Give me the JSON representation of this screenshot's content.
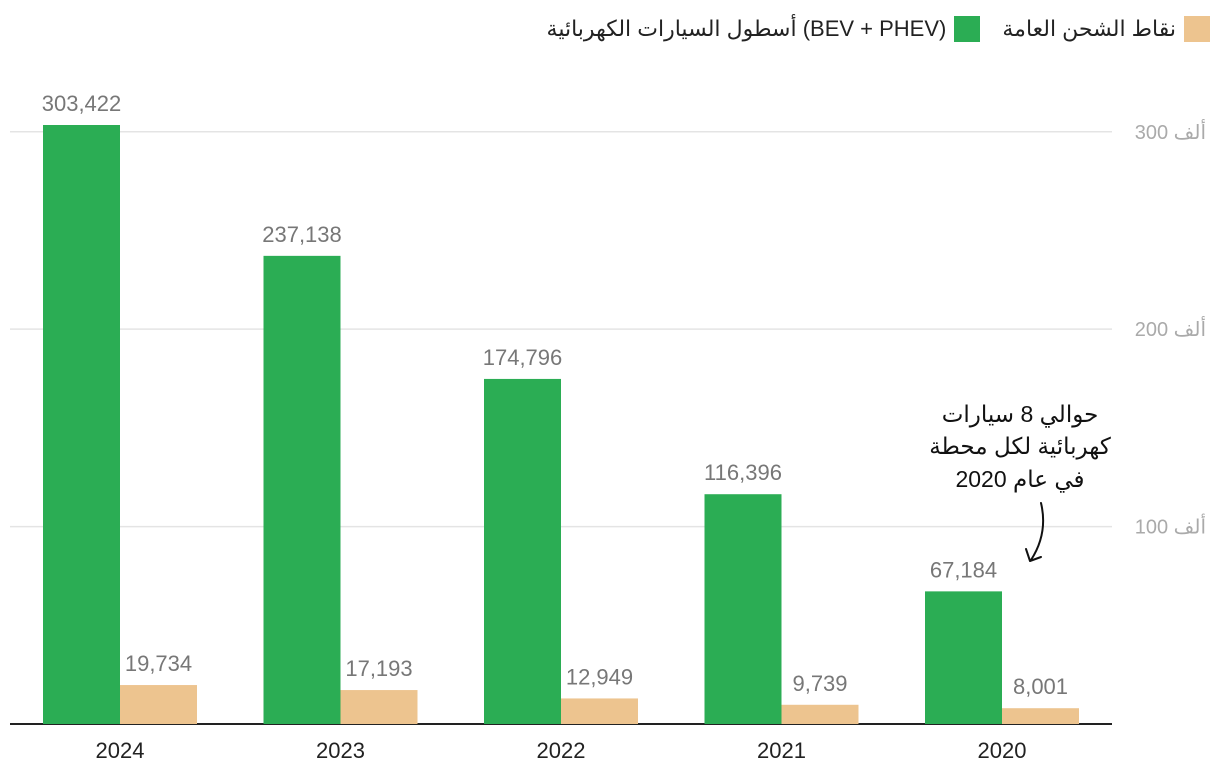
{
  "legend": {
    "ev_fleet": "أسطول السيارات الكهربائية (BEV + PHEV)",
    "charging_points": "نقاط الشحن العامة"
  },
  "colors": {
    "ev_fleet": "#2bad54",
    "charging_points": "#edc48f",
    "grid": "#e4e4e4",
    "axis": "#222222"
  },
  "annotation": {
    "lines": [
      "حوالي 8 سيارات",
      "كهربائية لكل محطة",
      "في عام 2020"
    ]
  },
  "chart_data": {
    "type": "bar",
    "categories": [
      "2024",
      "2023",
      "2022",
      "2021",
      "2020"
    ],
    "series": [
      {
        "name": "أسطول السيارات الكهربائية (BEV + PHEV)",
        "key": "ev_fleet",
        "values": [
          303422,
          237138,
          174796,
          116396,
          67184
        ],
        "labels": [
          "303,422",
          "237,138",
          "174,796",
          "116,396",
          "67,184"
        ]
      },
      {
        "name": "نقاط الشحن العامة",
        "key": "charging_points",
        "values": [
          19734,
          17193,
          12949,
          9739,
          8001
        ],
        "labels": [
          "19,734",
          "17,193",
          "12,949",
          "9,739",
          "8,001"
        ]
      }
    ],
    "yticks": [
      {
        "value": 100000,
        "label": "100 ألف"
      },
      {
        "value": 200000,
        "label": "200 ألف"
      },
      {
        "value": 300000,
        "label": "300 ألف"
      }
    ],
    "ylim": [
      0,
      303422
    ],
    "grid": true,
    "legend_position": "top-right"
  }
}
